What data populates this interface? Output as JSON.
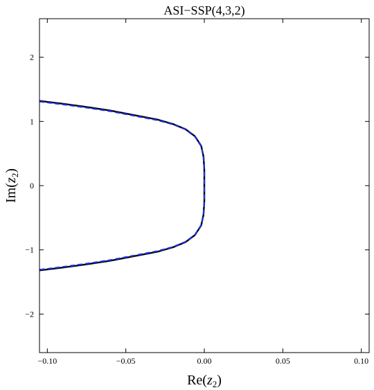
{
  "chart_data": {
    "type": "line",
    "title": "ASI−SSP(4,3,2)",
    "xlabel": {
      "prefix": "Re(",
      "var": "z",
      "sub": "2",
      "suffix": ")"
    },
    "ylabel": {
      "prefix": "Im(",
      "var": "z",
      "sub": "2",
      "suffix": ")"
    },
    "xlim": [
      -0.105,
      0.105
    ],
    "ylim": [
      -2.6,
      2.6
    ],
    "x_ticks": [
      {
        "value": -0.1,
        "label": "−0.10"
      },
      {
        "value": -0.05,
        "label": "−0.05"
      },
      {
        "value": 0.0,
        "label": "0.00"
      },
      {
        "value": 0.05,
        "label": "0.05"
      },
      {
        "value": 0.1,
        "label": "0.10"
      }
    ],
    "y_ticks": [
      {
        "value": -2,
        "label": "−2"
      },
      {
        "value": -1,
        "label": "−1"
      },
      {
        "value": 0,
        "label": "0"
      },
      {
        "value": 1,
        "label": "1"
      },
      {
        "value": 2,
        "label": "2"
      }
    ],
    "grid": false,
    "series": [
      {
        "style": "solid",
        "color": "#000000",
        "points": [
          [
            -0.105,
            1.32
          ],
          [
            -0.09,
            1.275
          ],
          [
            -0.075,
            1.225
          ],
          [
            -0.06,
            1.17
          ],
          [
            -0.045,
            1.1
          ],
          [
            -0.03,
            1.03
          ],
          [
            -0.02,
            0.96
          ],
          [
            -0.012,
            0.88
          ],
          [
            -0.006,
            0.77
          ],
          [
            -0.002,
            0.62
          ],
          [
            -0.0005,
            0.45
          ],
          [
            0.0,
            0.25
          ],
          [
            0.0,
            0.0
          ],
          [
            0.0,
            -0.25
          ],
          [
            -0.0005,
            -0.45
          ],
          [
            -0.002,
            -0.62
          ],
          [
            -0.006,
            -0.77
          ],
          [
            -0.012,
            -0.88
          ],
          [
            -0.02,
            -0.96
          ],
          [
            -0.03,
            -1.03
          ],
          [
            -0.045,
            -1.1
          ],
          [
            -0.06,
            -1.17
          ],
          [
            -0.075,
            -1.225
          ],
          [
            -0.09,
            -1.275
          ],
          [
            -0.105,
            -1.32
          ]
        ]
      },
      {
        "style": "dashed",
        "color": "#1a2ee6",
        "points": [
          [
            -0.105,
            1.31
          ],
          [
            -0.09,
            1.265
          ],
          [
            -0.075,
            1.215
          ],
          [
            -0.06,
            1.16
          ],
          [
            -0.045,
            1.09
          ],
          [
            -0.03,
            1.02
          ],
          [
            -0.02,
            0.955
          ],
          [
            -0.012,
            0.875
          ],
          [
            -0.006,
            0.765
          ],
          [
            -0.002,
            0.615
          ],
          [
            -0.0005,
            0.45
          ],
          [
            0.0,
            0.25
          ],
          [
            0.0,
            0.0
          ],
          [
            0.0,
            -0.25
          ],
          [
            -0.0005,
            -0.45
          ],
          [
            -0.002,
            -0.615
          ],
          [
            -0.006,
            -0.765
          ],
          [
            -0.012,
            -0.875
          ],
          [
            -0.02,
            -0.955
          ],
          [
            -0.03,
            -1.02
          ],
          [
            -0.045,
            -1.09
          ],
          [
            -0.06,
            -1.16
          ],
          [
            -0.075,
            -1.215
          ],
          [
            -0.09,
            -1.265
          ],
          [
            -0.105,
            -1.31
          ]
        ]
      }
    ]
  }
}
